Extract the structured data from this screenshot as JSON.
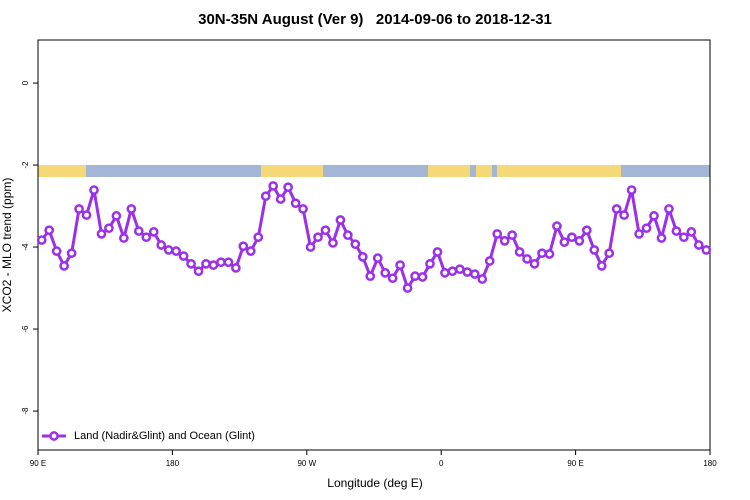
{
  "chart_data": {
    "type": "line",
    "title": "30N-35N August (Ver 9)   2014-09-06 to 2018-12-31",
    "xlabel": "Longitude (deg E)",
    "ylabel": "XCO2 - MLO trend (ppm)",
    "x": [
      92.5,
      97.5,
      102.5,
      107.5,
      112.5,
      117.5,
      122.5,
      127.5,
      132.5,
      137.5,
      142.5,
      147.5,
      152.5,
      157.5,
      162.5,
      167.5,
      172.5,
      177.5,
      182.5,
      187.5,
      192.5,
      197.5,
      202.5,
      207.5,
      212.5,
      217.5,
      222.5,
      227.5,
      232.5,
      237.5,
      242.5,
      247.5,
      252.5,
      257.5,
      262.5,
      267.5,
      272.5,
      277.5,
      282.5,
      287.5,
      292.5,
      297.5,
      302.5,
      307.5,
      312.5,
      317.5,
      322.5,
      327.5,
      332.5,
      337.5,
      342.5,
      347.5,
      352.5,
      357.5,
      362.5,
      367.5,
      372.5,
      377.5,
      382.5,
      387.5,
      392.5,
      397.5,
      402.5,
      407.5,
      412.5,
      417.5,
      422.5,
      427.5,
      432.5,
      437.5,
      442.5,
      447.5,
      452.5,
      457.5,
      462.5,
      467.5,
      472.5,
      477.5,
      482.5,
      487.5,
      492.5,
      497.5,
      502.5,
      507.5,
      512.5,
      517.5,
      522.5,
      527.5,
      532.5,
      537.5
    ],
    "series": [
      {
        "name": "Land (Nadir&Glint) and Ocean (Glint)",
        "color": "#9b30e8",
        "values": [
          -3.83,
          -3.59,
          -4.1,
          -4.46,
          -4.15,
          -3.07,
          -3.22,
          -2.61,
          -3.68,
          -3.54,
          -3.24,
          -3.78,
          -3.07,
          -3.61,
          -3.76,
          -3.63,
          -3.95,
          -4.07,
          -4.1,
          -4.22,
          -4.41,
          -4.59,
          -4.41,
          -4.44,
          -4.37,
          -4.37,
          -4.51,
          -3.98,
          -4.1,
          -3.76,
          -2.76,
          -2.51,
          -2.83,
          -2.54,
          -2.93,
          -3.07,
          -4.0,
          -3.76,
          -3.59,
          -3.9,
          -3.34,
          -3.71,
          -3.93,
          -4.24,
          -4.71,
          -4.27,
          -4.63,
          -4.76,
          -4.44,
          -5.0,
          -4.71,
          -4.73,
          -4.41,
          -4.12,
          -4.63,
          -4.59,
          -4.54,
          -4.61,
          -4.66,
          -4.78,
          -4.34,
          -3.68,
          -3.85,
          -3.71,
          -4.12,
          -4.29,
          -4.41,
          -4.15,
          -4.17,
          -3.49,
          -3.88,
          -3.76,
          -3.85,
          -3.59,
          -4.07,
          -4.46,
          -4.15,
          -3.07,
          -3.22,
          -2.61,
          -3.68,
          -3.54,
          -3.24,
          -3.78,
          -3.07,
          -3.61,
          -3.76,
          -3.63,
          -3.95,
          -4.07
        ]
      }
    ],
    "xlim": [
      90,
      540
    ],
    "ylim": [
      -8.95,
      1.05
    ],
    "xticks": [
      {
        "value": 90,
        "label": "90 E"
      },
      {
        "value": 180,
        "label": "180"
      },
      {
        "value": 270,
        "label": "90 W"
      },
      {
        "value": 360,
        "label": "0"
      },
      {
        "value": 450,
        "label": "90 E"
      },
      {
        "value": 540,
        "label": "180"
      }
    ],
    "yticks": [
      0,
      -2,
      -4,
      -6,
      -8
    ],
    "legend": "bottom-left"
  }
}
